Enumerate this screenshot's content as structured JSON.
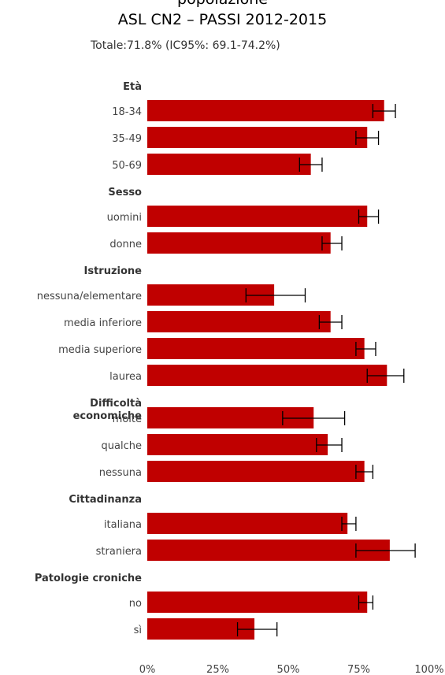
{
  "chart_data": {
    "type": "bar",
    "orientation": "horizontal",
    "title_lines": [
      "popolazione",
      "ASL CN2 – PASSI 2012-2015"
    ],
    "subtitle": "Totale:71.8% (IC95%: 69.1-74.2%)",
    "xlim": [
      0,
      100
    ],
    "x_ticks": [
      "0%",
      "25%",
      "50%",
      "75%",
      "100%"
    ],
    "bar_color": "#c00000",
    "groups": [
      {
        "label": "Età",
        "rows": [
          {
            "label": "18-34",
            "value": 84,
            "ci": [
              80,
              88
            ]
          },
          {
            "label": "35-49",
            "value": 78,
            "ci": [
              74,
              82
            ]
          },
          {
            "label": "50-69",
            "value": 58,
            "ci": [
              54,
              62
            ]
          }
        ]
      },
      {
        "label": "Sesso",
        "rows": [
          {
            "label": "uomini",
            "value": 78,
            "ci": [
              75,
              82
            ]
          },
          {
            "label": "donne",
            "value": 65,
            "ci": [
              62,
              69
            ]
          }
        ]
      },
      {
        "label": "Istruzione",
        "rows": [
          {
            "label": "nessuna/elementare",
            "value": 45,
            "ci": [
              35,
              56
            ]
          },
          {
            "label": "media inferiore",
            "value": 65,
            "ci": [
              61,
              69
            ]
          },
          {
            "label": "media superiore",
            "value": 77,
            "ci": [
              74,
              81
            ]
          },
          {
            "label": "laurea",
            "value": 85,
            "ci": [
              78,
              91
            ]
          }
        ]
      },
      {
        "label": "Difficoltà economiche",
        "rows": [
          {
            "label": "molte",
            "value": 59,
            "ci": [
              48,
              70
            ]
          },
          {
            "label": "qualche",
            "value": 64,
            "ci": [
              60,
              69
            ]
          },
          {
            "label": "nessuna",
            "value": 77,
            "ci": [
              74,
              80
            ]
          }
        ]
      },
      {
        "label": "Cittadinanza",
        "rows": [
          {
            "label": "italiana",
            "value": 71,
            "ci": [
              69,
              74
            ]
          },
          {
            "label": "straniera",
            "value": 86,
            "ci": [
              74,
              95
            ]
          }
        ]
      },
      {
        "label": "Patologie croniche",
        "rows": [
          {
            "label": "no",
            "value": 78,
            "ci": [
              75,
              80
            ]
          },
          {
            "label": "sì",
            "value": 38,
            "ci": [
              32,
              46
            ]
          }
        ]
      }
    ]
  }
}
